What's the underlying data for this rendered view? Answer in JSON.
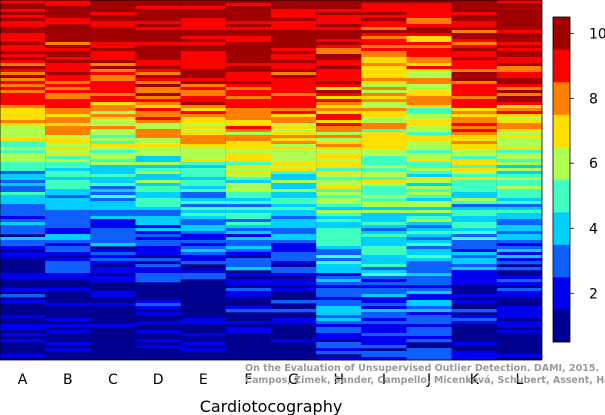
{
  "chart_data": {
    "type": "heatmap",
    "title": "",
    "xlabel": "Cardiotocography",
    "ylabel": "",
    "categories": [
      "A",
      "B",
      "C",
      "D",
      "E",
      "F",
      "G",
      "H",
      "I",
      "J",
      "K",
      "L"
    ],
    "colorbar": {
      "ticks": [
        2,
        4,
        6,
        8,
        10
      ],
      "range": [
        0.5,
        10.5
      ],
      "bins": 10,
      "colors": [
        "#00008f",
        "#0000ef",
        "#0f5fff",
        "#00cfff",
        "#40ffbf",
        "#afff50",
        "#ffdf00",
        "#ff7f00",
        "#ff0000",
        "#9f0000"
      ]
    },
    "background_level": 1,
    "columns": [
      {
        "category": "A",
        "profile": [
          [
            0,
            10
          ],
          [
            0.2,
            9.4
          ],
          [
            0.32,
            8
          ],
          [
            0.38,
            6.4
          ],
          [
            0.45,
            4.8
          ],
          [
            0.55,
            3.6
          ],
          [
            0.65,
            2.4
          ],
          [
            0.75,
            1.4
          ],
          [
            1,
            1
          ]
        ]
      },
      {
        "category": "B",
        "profile": [
          [
            0,
            10
          ],
          [
            0.2,
            9.5
          ],
          [
            0.34,
            8
          ],
          [
            0.42,
            6.2
          ],
          [
            0.5,
            4.6
          ],
          [
            0.6,
            3.4
          ],
          [
            0.7,
            2.4
          ],
          [
            0.78,
            1.5
          ],
          [
            1,
            1
          ]
        ]
      },
      {
        "category": "C",
        "profile": [
          [
            0,
            10
          ],
          [
            0.12,
            9.6
          ],
          [
            0.24,
            8.6
          ],
          [
            0.36,
            6.6
          ],
          [
            0.48,
            4.6
          ],
          [
            0.6,
            3.4
          ],
          [
            0.7,
            2.2
          ],
          [
            0.8,
            1.4
          ],
          [
            1,
            1
          ]
        ]
      },
      {
        "category": "D",
        "profile": [
          [
            0,
            10
          ],
          [
            0.22,
            9.6
          ],
          [
            0.34,
            7.6
          ],
          [
            0.44,
            5.6
          ],
          [
            0.56,
            4
          ],
          [
            0.66,
            2.8
          ],
          [
            0.76,
            1.8
          ],
          [
            0.86,
            1.2
          ],
          [
            1,
            1
          ]
        ]
      },
      {
        "category": "E",
        "profile": [
          [
            0,
            10
          ],
          [
            0.22,
            9.6
          ],
          [
            0.32,
            8
          ],
          [
            0.42,
            6
          ],
          [
            0.54,
            4.2
          ],
          [
            0.64,
            3
          ],
          [
            0.74,
            2
          ],
          [
            0.84,
            1.3
          ],
          [
            1,
            1
          ]
        ]
      },
      {
        "category": "F",
        "profile": [
          [
            0,
            10
          ],
          [
            0.2,
            9.6
          ],
          [
            0.34,
            8
          ],
          [
            0.44,
            6.2
          ],
          [
            0.56,
            4.4
          ],
          [
            0.66,
            3.2
          ],
          [
            0.76,
            2.2
          ],
          [
            0.84,
            1.4
          ],
          [
            1,
            1
          ]
        ]
      },
      {
        "category": "G",
        "profile": [
          [
            0,
            10
          ],
          [
            0.14,
            9.6
          ],
          [
            0.26,
            8.8
          ],
          [
            0.38,
            7
          ],
          [
            0.5,
            5
          ],
          [
            0.62,
            3.6
          ],
          [
            0.72,
            2.4
          ],
          [
            0.82,
            1.6
          ],
          [
            1,
            1
          ]
        ]
      },
      {
        "category": "H",
        "profile": [
          [
            0,
            10
          ],
          [
            0.1,
            9.6
          ],
          [
            0.22,
            8.8
          ],
          [
            0.36,
            7.4
          ],
          [
            0.5,
            6
          ],
          [
            0.64,
            4.6
          ],
          [
            0.78,
            3.4
          ],
          [
            0.9,
            2.6
          ],
          [
            1,
            1.6
          ]
        ]
      },
      {
        "category": "I",
        "profile": [
          [
            0,
            10
          ],
          [
            0.08,
            9
          ],
          [
            0.2,
            7.6
          ],
          [
            0.34,
            6.6
          ],
          [
            0.48,
            5.8
          ],
          [
            0.62,
            4.8
          ],
          [
            0.76,
            3.6
          ],
          [
            0.88,
            2.6
          ],
          [
            1,
            1.6
          ]
        ]
      },
      {
        "category": "J",
        "profile": [
          [
            0,
            10
          ],
          [
            0.06,
            8.8
          ],
          [
            0.2,
            7.2
          ],
          [
            0.34,
            6.4
          ],
          [
            0.48,
            5.6
          ],
          [
            0.62,
            4.6
          ],
          [
            0.76,
            3.6
          ],
          [
            0.88,
            2.6
          ],
          [
            1,
            1.8
          ]
        ]
      },
      {
        "category": "K",
        "profile": [
          [
            0,
            10
          ],
          [
            0.12,
            9.4
          ],
          [
            0.26,
            8.6
          ],
          [
            0.4,
            7
          ],
          [
            0.54,
            5
          ],
          [
            0.68,
            3.2
          ],
          [
            0.8,
            2
          ],
          [
            0.9,
            1.4
          ],
          [
            1,
            1.1
          ]
        ]
      },
      {
        "category": "L",
        "profile": [
          [
            0,
            10
          ],
          [
            0.16,
            9.5
          ],
          [
            0.28,
            8.6
          ],
          [
            0.38,
            6.8
          ],
          [
            0.5,
            4.8
          ],
          [
            0.62,
            3.4
          ],
          [
            0.74,
            2.2
          ],
          [
            0.84,
            1.4
          ],
          [
            1,
            1
          ]
        ]
      }
    ]
  },
  "credit": {
    "line1": "On the Evaluation of Unsupervised Outlier Detection. DAMI, 2015.",
    "line2": "Campos, Zimek, Sander, Campello, Micenková, Schubert, Assent, Houle"
  }
}
